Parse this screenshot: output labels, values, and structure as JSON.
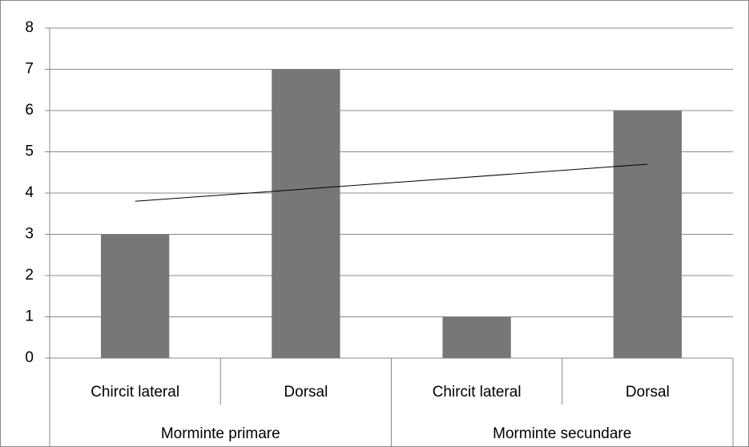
{
  "chart_data": {
    "type": "bar",
    "categories": [
      "Chircit lateral",
      "Dorsal",
      "Chircit lateral",
      "Dorsal"
    ],
    "groups": [
      "Morminte primare",
      "Morminte secundare"
    ],
    "values": [
      3,
      7,
      1,
      6
    ],
    "color": "#777777",
    "ylim": [
      0,
      8
    ],
    "yticks": [
      0,
      1,
      2,
      3,
      4,
      5,
      6,
      7,
      8
    ],
    "grid": true,
    "trendline": "linear"
  }
}
